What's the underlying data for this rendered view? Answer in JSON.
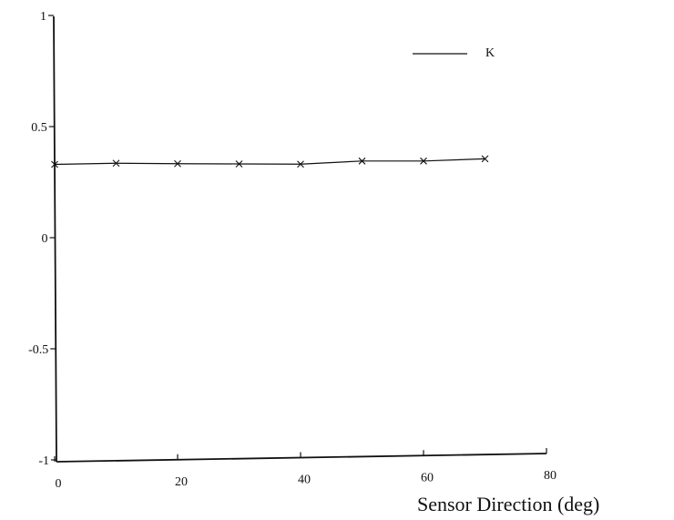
{
  "chart_data": {
    "type": "line",
    "title": "",
    "xlabel": "Sensor Direction (deg)",
    "ylabel": "",
    "xlim": [
      0,
      80
    ],
    "ylim": [
      -1,
      1
    ],
    "xticks": [
      0,
      20,
      40,
      60,
      80
    ],
    "yticks": [
      -1,
      -0.5,
      0,
      0.5,
      1
    ],
    "xtick_labels": [
      "0",
      "20",
      "40",
      "60",
      "80"
    ],
    "ytick_labels": [
      "-1",
      "-0.5",
      "0",
      "0.5",
      "1"
    ],
    "grid": false,
    "legend": {
      "position": "top-right"
    },
    "series": [
      {
        "name": "K",
        "marker": "x",
        "color": "#111111",
        "x": [
          0,
          10,
          20,
          30,
          40,
          50,
          60,
          70
        ],
        "y": [
          0.33,
          0.335,
          0.333,
          0.332,
          0.331,
          0.345,
          0.345,
          0.355
        ]
      }
    ]
  }
}
